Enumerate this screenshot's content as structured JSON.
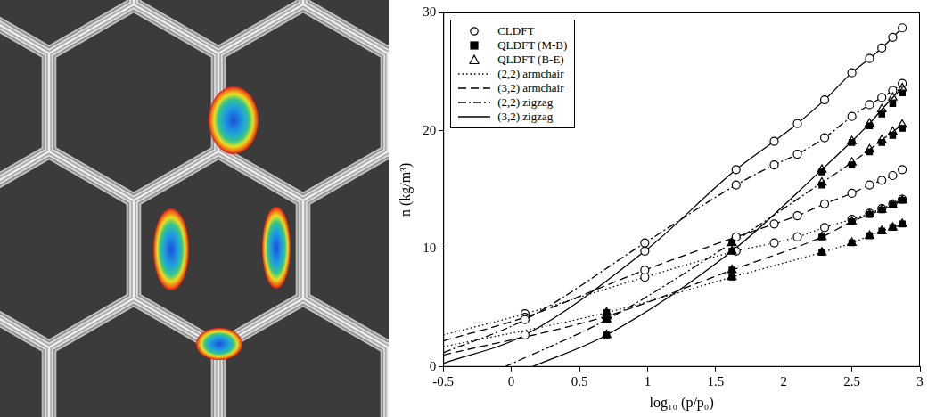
{
  "chart_data": {
    "type": "line",
    "x_label": "log₁₀ (p/p₀)",
    "y_label": "n (kg/m³)",
    "xlim": [
      -0.5,
      3
    ],
    "xticks": [
      -0.5,
      0,
      0.5,
      1,
      1.5,
      2,
      2.5,
      3
    ],
    "ylim": [
      0,
      30
    ],
    "yticks": [
      0,
      10,
      20,
      30
    ],
    "grid": false,
    "legend": "upper left",
    "color": "#000000",
    "marker_types": [
      {
        "name": "CLDFT",
        "marker": "open circle"
      },
      {
        "name": "QLDFT (M-B)",
        "marker": "filled square"
      },
      {
        "name": "QLDFT (B-E)",
        "marker": "open triangle"
      }
    ],
    "line_types": [
      {
        "name": "(2,2) armchair",
        "line_style": "dotted"
      },
      {
        "name": "(3,2) armchair",
        "line_style": "dashed"
      },
      {
        "name": "(2,2) zigzag",
        "line_style": "dashdot"
      },
      {
        "name": "(3,2) zigzag",
        "line_style": "solid"
      }
    ],
    "series": [
      {
        "tube": "(3,2) zigzag",
        "x": [
          -0.5,
          0.1,
          0.98,
          1.65,
          1.93,
          2.1,
          2.3,
          2.5,
          2.63,
          2.72,
          2.8,
          2.87
        ],
        "values": [
          0.3,
          2.7,
          9.8,
          16.7,
          19.1,
          20.6,
          22.6,
          24.9,
          26.1,
          27.0,
          27.9,
          28.7
        ],
        "points": [
          {
            "method": "CLDFT",
            "x": [
              0.1,
              0.98,
              1.65,
              1.93,
              2.1,
              2.3,
              2.5,
              2.63,
              2.72,
              2.8,
              2.87
            ],
            "values": [
              2.7,
              9.8,
              16.7,
              19.1,
              20.6,
              22.6,
              24.9,
              26.1,
              27.0,
              27.9,
              28.7
            ]
          }
        ]
      },
      {
        "tube": "(2,2) zigzag",
        "x": [
          -0.5,
          0.1,
          0.98,
          1.65,
          1.93,
          2.1,
          2.3,
          2.5,
          2.63,
          2.72,
          2.8,
          2.87
        ],
        "values": [
          1.2,
          4.0,
          10.5,
          15.4,
          17.1,
          18.0,
          19.4,
          21.2,
          22.2,
          22.8,
          23.4,
          24.0
        ],
        "points": [
          {
            "method": "CLDFT",
            "x": [
              0.1,
              0.98,
              1.65,
              1.93,
              2.1,
              2.3,
              2.5,
              2.63,
              2.72,
              2.8,
              2.87
            ],
            "values": [
              4.0,
              10.5,
              15.4,
              17.1,
              18.0,
              19.4,
              21.2,
              22.2,
              22.8,
              23.4,
              24.0
            ]
          }
        ]
      },
      {
        "tube": "(3,2) armchair",
        "x": [
          -0.5,
          0.1,
          0.98,
          1.65,
          1.93,
          2.1,
          2.3,
          2.5,
          2.63,
          2.72,
          2.8,
          2.87
        ],
        "values": [
          2.2,
          4.2,
          8.2,
          11.0,
          12.1,
          12.8,
          13.8,
          14.7,
          15.4,
          15.8,
          16.2,
          16.7
        ],
        "points": [
          {
            "method": "CLDFT",
            "x": [
              0.1,
              0.98,
              1.65,
              1.93,
              2.1,
              2.3,
              2.5,
              2.63,
              2.72,
              2.8,
              2.87
            ],
            "values": [
              4.2,
              8.2,
              11.0,
              12.1,
              12.8,
              13.8,
              14.7,
              15.4,
              15.8,
              16.2,
              16.7
            ]
          }
        ]
      },
      {
        "tube": "(2,2) armchair",
        "x": [
          -0.5,
          0.1,
          0.98,
          1.65,
          1.93,
          2.1,
          2.3,
          2.5,
          2.63,
          2.72,
          2.8,
          2.87
        ],
        "values": [
          2.7,
          4.5,
          7.6,
          9.8,
          10.5,
          11.0,
          11.8,
          12.5,
          13.0,
          13.4,
          13.8,
          14.2
        ],
        "points": [
          {
            "method": "CLDFT",
            "x": [
              0.1,
              0.98,
              1.65,
              1.93,
              2.1,
              2.3,
              2.5,
              2.63,
              2.72,
              2.8,
              2.87
            ],
            "values": [
              4.5,
              7.6,
              9.8,
              10.5,
              11.0,
              11.8,
              12.5,
              13.0,
              13.4,
              13.8,
              14.2
            ]
          }
        ]
      },
      {
        "tube": "(3,2) zigzag",
        "x": [
          0.15,
          0.7,
          1.62,
          2.28,
          2.5,
          2.63,
          2.72,
          2.8,
          2.87
        ],
        "values": [
          0,
          2.7,
          9.8,
          16.7,
          19.1,
          20.6,
          21.8,
          22.8,
          23.6
        ],
        "points": [
          {
            "method": "QLDFT (M-B)",
            "x": [
              0.7,
              1.62,
              2.28,
              2.5,
              2.63,
              2.72,
              2.8,
              2.87
            ],
            "values": [
              2.7,
              9.8,
              16.5,
              19.0,
              20.4,
              21.4,
              22.3,
              23.2
            ]
          },
          {
            "method": "QLDFT (B-E)",
            "x": [
              0.7,
              1.62,
              2.28,
              2.5,
              2.63,
              2.72,
              2.8,
              2.87
            ],
            "values": [
              2.7,
              9.8,
              16.7,
              19.1,
              20.6,
              21.8,
              22.8,
              23.6
            ]
          }
        ]
      },
      {
        "tube": "(2,2) zigzag",
        "x": [
          -0.05,
          0.7,
          1.62,
          2.28,
          2.5,
          2.63,
          2.72,
          2.8,
          2.87
        ],
        "values": [
          0,
          4.0,
          10.5,
          15.6,
          17.3,
          18.4,
          19.2,
          19.9,
          20.5
        ],
        "points": [
          {
            "method": "QLDFT (M-B)",
            "x": [
              0.7,
              1.62,
              2.28,
              2.5,
              2.63,
              2.72,
              2.8,
              2.87
            ],
            "values": [
              4.0,
              10.5,
              15.4,
              17.1,
              18.2,
              19.0,
              19.6,
              20.2
            ]
          },
          {
            "method": "QLDFT (B-E)",
            "x": [
              0.7,
              1.62,
              2.28,
              2.5,
              2.63,
              2.72,
              2.8,
              2.87
            ],
            "values": [
              4.0,
              10.5,
              15.6,
              17.3,
              18.4,
              19.2,
              19.9,
              20.5
            ]
          }
        ]
      },
      {
        "tube": "(3,2) armchair",
        "x": [
          -0.5,
          0.7,
          1.62,
          2.28,
          2.5,
          2.63,
          2.72,
          2.8,
          2.87
        ],
        "values": [
          1.0,
          4.3,
          8.2,
          11.0,
          12.3,
          12.9,
          13.3,
          13.7,
          14.1
        ],
        "points": [
          {
            "method": "QLDFT (M-B)",
            "x": [
              0.7,
              1.62,
              2.28,
              2.5,
              2.63,
              2.72,
              2.8,
              2.87
            ],
            "values": [
              4.3,
              8.2,
              11.0,
              12.3,
              12.9,
              13.3,
              13.7,
              14.1
            ]
          },
          {
            "method": "QLDFT (B-E)",
            "x": [
              0.7,
              1.62,
              2.28,
              2.5,
              2.63,
              2.72,
              2.8,
              2.87
            ],
            "values": [
              4.3,
              8.2,
              11.0,
              12.3,
              12.9,
              13.3,
              13.7,
              14.1
            ]
          }
        ]
      },
      {
        "tube": "(2,2) armchair",
        "x": [
          -0.5,
          0.7,
          1.62,
          2.28,
          2.5,
          2.63,
          2.72,
          2.8,
          2.87
        ],
        "values": [
          1.7,
          4.6,
          7.6,
          9.7,
          10.5,
          11.1,
          11.5,
          11.8,
          12.1
        ],
        "points": [
          {
            "method": "QLDFT (M-B)",
            "x": [
              0.7,
              1.62,
              2.28,
              2.5,
              2.63,
              2.72,
              2.8,
              2.87
            ],
            "values": [
              4.6,
              7.6,
              9.7,
              10.5,
              11.1,
              11.5,
              11.8,
              12.1
            ]
          },
          {
            "method": "QLDFT (B-E)",
            "x": [
              0.7,
              1.62,
              2.28,
              2.5,
              2.63,
              2.72,
              2.8,
              2.87
            ],
            "values": [
              4.6,
              7.6,
              9.7,
              10.5,
              11.1,
              11.5,
              11.8,
              12.1
            ]
          }
        ]
      }
    ]
  }
}
